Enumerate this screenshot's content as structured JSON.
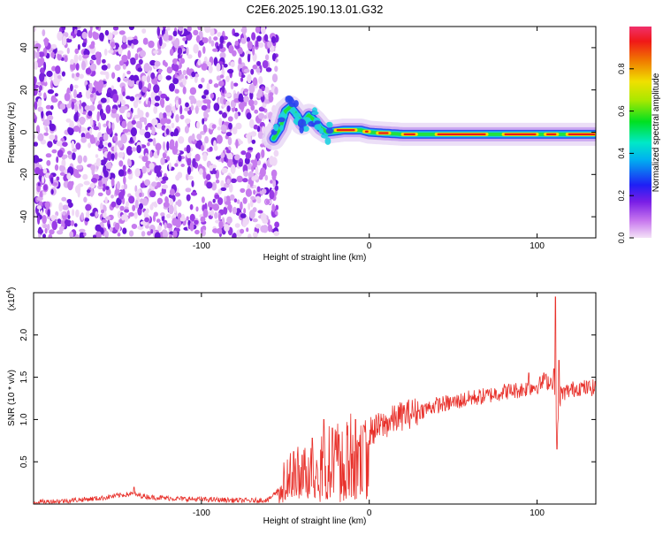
{
  "title": "C2E6.2025.190.13.01.G32",
  "chart_data": [
    {
      "type": "heatmap",
      "xlabel": "Height of straight line (km)",
      "ylabel": "Frequency (Hz)",
      "xlim": [
        -200,
        135
      ],
      "ylim": [
        -50,
        50
      ],
      "xticks": [
        -100,
        0,
        100
      ],
      "yticks": [
        -40,
        -20,
        0,
        20,
        40
      ],
      "noise_region_x": [
        -200,
        -55
      ],
      "ridge": [
        {
          "x": -57,
          "y": -3
        },
        {
          "x": -53,
          "y": 2
        },
        {
          "x": -50,
          "y": 10
        },
        {
          "x": -47,
          "y": 12
        },
        {
          "x": -43,
          "y": 8
        },
        {
          "x": -40,
          "y": 4
        },
        {
          "x": -36,
          "y": 8
        },
        {
          "x": -32,
          "y": 5
        },
        {
          "x": -29,
          "y": 2
        },
        {
          "x": -25,
          "y": 0
        },
        {
          "x": -15,
          "y": 1
        },
        {
          "x": -5,
          "y": 1
        },
        {
          "x": 0,
          "y": 0
        },
        {
          "x": 20,
          "y": -1
        },
        {
          "x": 60,
          "y": -1
        },
        {
          "x": 100,
          "y": -1
        },
        {
          "x": 135,
          "y": -1
        }
      ],
      "colorbar": {
        "label": "Normalized spectral amplitude",
        "ticks": [
          0.0,
          0.2,
          0.4,
          0.6,
          0.8
        ],
        "range": [
          0,
          1
        ]
      }
    },
    {
      "type": "line",
      "xlabel": "Height of straight line (km)",
      "ylabel": "SNR (10 * v/v)",
      "y_multiplier": "(x10^4)",
      "xlim": [
        -200,
        135
      ],
      "ylim": [
        0,
        2.5
      ],
      "xticks": [
        -100,
        0,
        100
      ],
      "yticks": [
        0.5,
        1.0,
        1.5,
        2.0
      ],
      "series": [
        {
          "color": "#e8312b",
          "x": [
            -200,
            -180,
            -160,
            -150,
            -142,
            -130,
            -110,
            -90,
            -70,
            -60,
            -50,
            -45,
            -40,
            -35,
            -30,
            -25,
            -20,
            -15,
            -10,
            -5,
            0,
            10,
            20,
            30,
            40,
            50,
            60,
            70,
            80,
            90,
            100,
            105,
            110,
            112,
            114,
            120,
            125,
            130,
            135
          ],
          "y": [
            0.02,
            0.04,
            0.07,
            0.1,
            0.12,
            0.08,
            0.06,
            0.05,
            0.04,
            0.05,
            0.25,
            0.35,
            0.35,
            0.4,
            0.55,
            0.6,
            0.65,
            0.6,
            0.75,
            0.8,
            0.85,
            0.95,
            1.05,
            1.1,
            1.17,
            1.2,
            1.25,
            1.28,
            1.33,
            1.35,
            1.4,
            1.45,
            1.45,
            0.8,
            1.3,
            1.35,
            1.38,
            1.37,
            1.38
          ],
          "spikes": [
            {
              "x": -140,
              "y": 0.2
            },
            {
              "x": -45,
              "y": 0.62
            },
            {
              "x": -40,
              "y": 0.58
            },
            {
              "x": -34,
              "y": 0.78
            },
            {
              "x": -27,
              "y": 1.0
            },
            {
              "x": -22,
              "y": 0.9
            },
            {
              "x": -18,
              "y": 0.82
            },
            {
              "x": -8,
              "y": 1.0
            },
            {
              "x": -3,
              "y": 0.92
            },
            {
              "x": 95,
              "y": 1.55
            },
            {
              "x": 104,
              "y": 1.55
            },
            {
              "x": 110,
              "y": 1.6
            },
            {
              "x": 111,
              "y": 2.45
            },
            {
              "x": 112,
              "y": 0.65
            },
            {
              "x": 113,
              "y": 1.7
            }
          ]
        }
      ]
    }
  ]
}
